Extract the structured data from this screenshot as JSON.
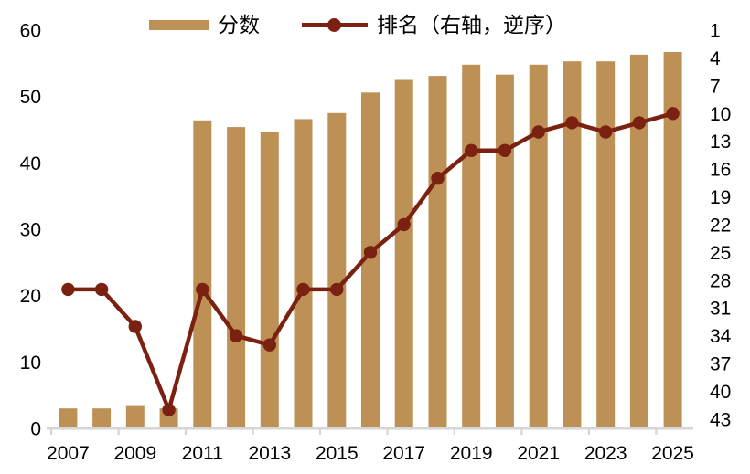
{
  "legend": {
    "score_label": "分数",
    "rank_label": "排名（右轴，逆序）"
  },
  "colors": {
    "bar": "#BD9155",
    "line": "#7B2111",
    "axis_line": "#D6D6D6",
    "text": "#000000",
    "background": "#FFFFFF"
  },
  "chart_data": {
    "type": "combo",
    "categories": [
      2007,
      2008,
      2009,
      2010,
      2011,
      2012,
      2013,
      2014,
      2015,
      2016,
      2017,
      2018,
      2019,
      2020,
      2021,
      2022,
      2023,
      2024,
      2025
    ],
    "series": [
      {
        "name": "分数",
        "type": "bar",
        "axis": "left",
        "color": "#BD9155",
        "values": [
          3.0,
          3.0,
          3.5,
          3.0,
          46.4,
          45.4,
          44.7,
          46.6,
          47.5,
          50.6,
          52.5,
          53.1,
          54.8,
          53.3,
          54.8,
          55.3,
          55.3,
          56.3,
          56.7
        ]
      },
      {
        "name": "排名（右轴，逆序）",
        "type": "line",
        "axis": "right",
        "color": "#7B2111",
        "values": [
          29,
          29,
          33,
          42,
          29,
          34,
          35,
          29,
          29,
          25,
          22,
          17,
          14,
          14,
          12,
          11,
          12,
          11,
          10
        ]
      }
    ],
    "left_axis": {
      "min": 0,
      "max": 60,
      "ticks": [
        0,
        10,
        20,
        30,
        40,
        50,
        60
      ]
    },
    "right_axis": {
      "min": 1,
      "max": 44,
      "inverted": true,
      "ticks": [
        1,
        4,
        7,
        10,
        13,
        16,
        19,
        22,
        25,
        28,
        31,
        34,
        37,
        40,
        43
      ]
    },
    "x_axis": {
      "labeled_ticks": [
        "2007",
        "2009",
        "2011",
        "2013",
        "2015",
        "2017",
        "2019",
        "2021",
        "2023",
        "2025"
      ],
      "label_interval": 2,
      "tick_interval": 2
    },
    "legend_position": "top",
    "grid": false
  }
}
